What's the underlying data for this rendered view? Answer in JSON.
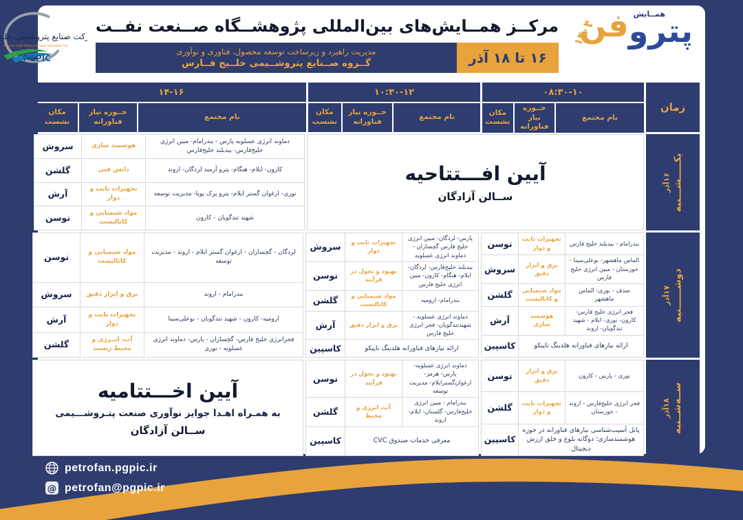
{
  "header": {
    "title": "مرکــز همــایش‌های بین‌المللی پژوهشــگاه صــنعت نفــت",
    "band_line1": "مدیریت راهبرد و زیرساخت توسعه محصول، فناوری و نوآوری",
    "band_line2": "گــروه صــنایع پتروشــیمی خلــیج فــارس",
    "date_badge": "۱۶ تا ۱۸ آذر",
    "pgpic": {
      "fa_name": "شرکت صنایع پتروشیمی خلیج فارس",
      "en_name": "Persian Gulf Petrochemical Industries Co.",
      "abbr": "PGPIC"
    },
    "petrofan": {
      "tag": "همــایش",
      "word_blue": "پترو",
      "word_gold": "فن",
      "year": "۱۴۰۴"
    }
  },
  "table": {
    "time_label": "زمان",
    "cols": {
      "name": "نام مجتمع",
      "need": "حــوزه نیاز فناورانه",
      "place": "مکان نشست"
    },
    "times": [
      "۰۸:۳۰-۱۰",
      "۱۰:۳۰-۱۲",
      "۱۴-۱۶"
    ],
    "days": [
      {
        "name": "یکـــــشـــنبه",
        "date": "۱۶آذر",
        "ceremony_ab": {
          "title": "آیین افـــتتاحیه",
          "subtitle": "ســالن آزادگان"
        },
        "slot_14_16": [
          {
            "name": "دماوند انرژی عسلویه پارس - بندرامام- مبین انرژی خلیج‌فارس- بیدبلند خلیج‌فارس",
            "need": "هوشمند سازی",
            "place": "سروش"
          },
          {
            "name": "کارون- ایلام- هنگام- پترو آرمند لردگان- اروند",
            "need": "دانش فنی",
            "place": "گلشن"
          },
          {
            "name": "نوری- ارغوان گستر ایلام- پترو پرک پویا- مدیریت توسعه",
            "need": "تجهیزات ثابت و دوار",
            "place": "آرش"
          },
          {
            "name": "شهید تندگویان - کارون",
            "need": "مواد شیمیایی و کاتالیست",
            "place": "توسن"
          }
        ]
      },
      {
        "name": "دوشــــــنبه",
        "date": "۱۷آذر",
        "slot_08_30": [
          {
            "name": "بندرامام - بیدبلند خلیج فارس",
            "need": "تجهیزات ثابت و دوار",
            "place": "توسن"
          },
          {
            "name": "الماس ماهشهر- بوعلی‌سینا - خوزستان - مبین انرژی خلیج فارس",
            "need": "برق و ابزار دقیق",
            "place": "سروش"
          },
          {
            "name": "صدف - نوری- الماس ماهشهر",
            "need": "مواد شیمیایی و کاتالیست",
            "place": "گلشن"
          },
          {
            "name": "فجر انرژی خلیج فارس- کارون- نوری- ایلام - شهید تندگویان- اروند",
            "need": "هوشمند سازی",
            "place": "آرش"
          },
          {
            "info": "ارائه نیازهای فناورانه هلدینگ تاپیکو",
            "place": "کاسپین"
          }
        ],
        "slot_10_30": [
          {
            "name": "پارس- لردگان- مبین انرژی خلیج فارس گچساران - دماوند انرژی عسلویه",
            "need": "تجهیزات ثابت و دوار",
            "place": "سروش"
          },
          {
            "name": "بیدبلند خلیج‌فارس- لردگان- ایلام- هنگام- کارون- مبین انرژی خلیج فارس",
            "need": "بهبود و تحول در فرآیند",
            "place": "توسن"
          },
          {
            "name": "بندرامام- ارومیه",
            "need": "مواد شیمیایی و کاتالیست",
            "place": "گلشن"
          },
          {
            "name": "دماوند انرژی عسلویه - شهیدتندگویان- فجر انرژی خلیج فارس",
            "need": "برق و ابزار دقیق",
            "place": "آرش"
          },
          {
            "info": "ارائه نیازهای فناورانه هلدینگ تاپیکو",
            "place": "کاسپین"
          }
        ],
        "slot_14_16": [
          {
            "name": "لردگان - گچساران - ارغوان گستر ایلام - اروند - مدیریت توسعه",
            "need": "مواد شیمیایی و کاتالیست",
            "place": "توسن"
          },
          {
            "name": "بندرامام - اروند",
            "need": "برق و ابزار دقیق",
            "place": "سروش"
          },
          {
            "name": "ارومیه- کارون - شهید تندگویان - بوعلی‌سینا",
            "need": "تجهیزات ثابت و دوار",
            "place": "آرش"
          },
          {
            "name": "فجرانرژی خلیج فارس- گچساران - پارس- دماوند انرژی عسلویه - نوری",
            "need": "آب، انــرژی و محیط زیست",
            "place": "گلشن"
          }
        ]
      },
      {
        "name": "ســه‌شــنبه",
        "date": "۱۸آذر",
        "slot_08_30": [
          {
            "name": "نوری - پارس - کارون",
            "need": "برق و ابزار دقیق",
            "place": "توسن"
          },
          {
            "name": "فجر انرژی خلیج‌فارس - اروند - خوزستان",
            "need": "تجهیزات ثابت و دوار",
            "place": "گلشن"
          },
          {
            "info": "پانل آسیب‌شناسی نیازهای فناورانه در حوزه هوشمندسازی؛ دوگانه بلوغ و خلق ارزش دیجیتال",
            "place": "کاسپین"
          }
        ],
        "slot_10_30": [
          {
            "name": "دماوند انرژی عسلویه- پارس- هرمز- ارغوان‌گسترایلام- مدیریت توسعه",
            "need": "بهبود و تحول در فرآیند",
            "place": "توسن"
          },
          {
            "name": "بندرامام - مبین انرژی خلیج‌فارس- گلستان- ایلام- اروند",
            "need": "آب، انرژی و محیط",
            "place": "گلشن"
          },
          {
            "info": "معرفی خدمات صندوق CVC",
            "place": "کاسپین"
          }
        ],
        "ceremony_c": {
          "title": "آیین اخـــتتامیه",
          "line2": "به همـراه اهـدا جوایز نوآوری صنعت پتـروشـــیمی",
          "line3": "ســالن آزادگان"
        }
      }
    ]
  },
  "footer": {
    "website": "petrofan.pgpic.ir",
    "email": "petrofan@pgpic.ir"
  },
  "colors": {
    "navy": "#2e3c6f",
    "gold": "#e8a33d"
  }
}
